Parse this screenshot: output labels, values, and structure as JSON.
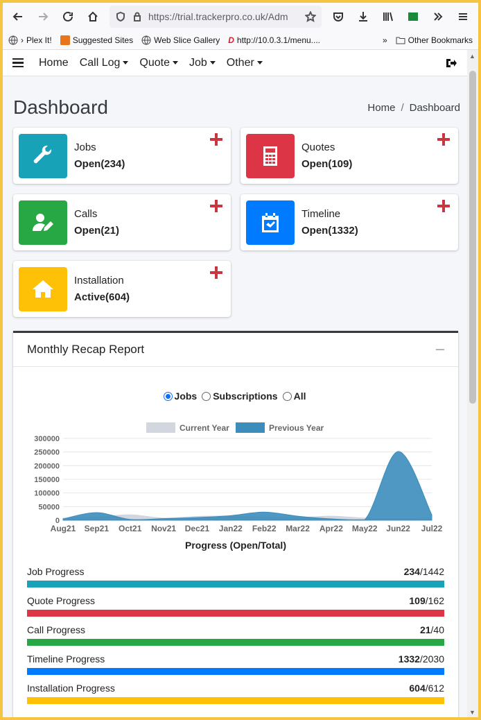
{
  "browser": {
    "url": "https://trial.trackerpro.co.uk/Adm",
    "bookmarks": [
      "Plex It!",
      "Suggested Sites",
      "Web Slice Gallery",
      "http://10.0.3.1/menu....",
      "Other Bookmarks"
    ]
  },
  "nav": {
    "items": [
      {
        "label": "Home",
        "dropdown": false
      },
      {
        "label": "Call Log",
        "dropdown": true
      },
      {
        "label": "Quote",
        "dropdown": true
      },
      {
        "label": "Job",
        "dropdown": true
      },
      {
        "label": "Other",
        "dropdown": true
      }
    ]
  },
  "header": {
    "title": "Dashboard",
    "breadcrumb": [
      "Home",
      "Dashboard"
    ]
  },
  "boxes": [
    {
      "title": "Jobs",
      "status": "Open(234)",
      "color": "#17a2b8",
      "icon": "wrench-icon"
    },
    {
      "title": "Quotes",
      "status": "Open(109)",
      "color": "#dc3545",
      "icon": "calculator-icon"
    },
    {
      "title": "Calls",
      "status": "Open(21)",
      "color": "#28a745",
      "icon": "user-edit-icon"
    },
    {
      "title": "Timeline",
      "status": "Open(1332)",
      "color": "#007bff",
      "icon": "calendar-check-icon"
    },
    {
      "title": "Installation",
      "status": "Active(604)",
      "color": "#ffc107",
      "icon": "home-icon"
    }
  ],
  "report": {
    "title": "Monthly Recap Report",
    "filters": [
      {
        "label": "Jobs",
        "checked": true
      },
      {
        "label": "Subscriptions",
        "checked": false
      },
      {
        "label": "All",
        "checked": false
      }
    ],
    "progress_title": "Progress (Open/Total)",
    "progress": [
      {
        "label": "Job Progress",
        "open": "234",
        "total": "/1442",
        "color": "#17a2b8"
      },
      {
        "label": "Quote Progress",
        "open": "109",
        "total": "/162",
        "color": "#dc3545"
      },
      {
        "label": "Call Progress",
        "open": "21",
        "total": "/40",
        "color": "#28a745"
      },
      {
        "label": "Timeline Progress",
        "open": "1332",
        "total": "/2030",
        "color": "#007bff"
      },
      {
        "label": "Installation Progress",
        "open": "604",
        "total": "/612",
        "color": "#ffc107"
      }
    ]
  },
  "chart_data": {
    "type": "area",
    "categories": [
      "Aug21",
      "Sep21",
      "Oct21",
      "Nov21",
      "Dec21",
      "Jan22",
      "Feb22",
      "Mar22",
      "Apr22",
      "May22",
      "Jun22",
      "Jul22"
    ],
    "series": [
      {
        "name": "Current Year",
        "color": "#d2d6de",
        "values": [
          8000,
          12000,
          20000,
          8000,
          14000,
          15000,
          12000,
          10000,
          15000,
          8000,
          6000,
          8000
        ]
      },
      {
        "name": "Previous Year",
        "color": "#3c8dbc",
        "values": [
          5000,
          28000,
          3000,
          6000,
          10000,
          17000,
          30000,
          15000,
          5000,
          2000,
          252000,
          20000
        ]
      }
    ],
    "yticks": [
      "300000",
      "250000",
      "200000",
      "150000",
      "100000",
      "50000",
      "0"
    ],
    "ylim": [
      0,
      300000
    ],
    "legend": "top-center",
    "grid": true
  }
}
